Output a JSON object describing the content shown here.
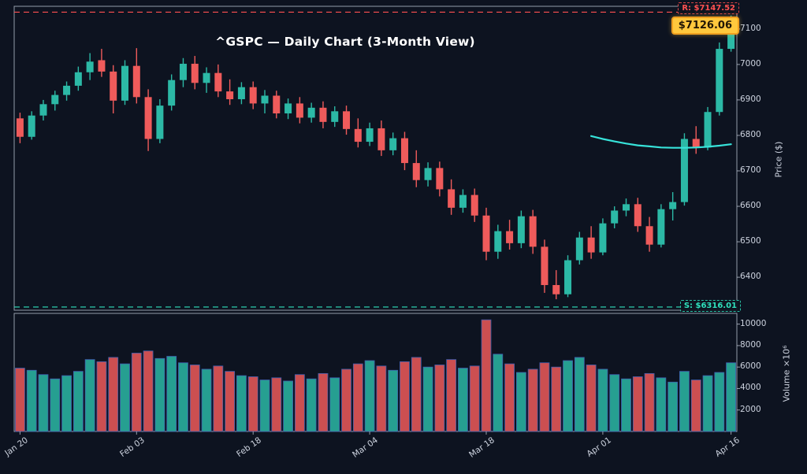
{
  "chart_data": {
    "type": "candlestick",
    "symbol": "^GSPC",
    "title": "^GSPC — Daily Chart (3-Month View)",
    "ylabel_price": "Price ($)",
    "ylabel_volume": "Volume ×10⁶",
    "ylim_price": [
      6307,
      7164
    ],
    "ylim_volume": [
      0,
      11000
    ],
    "price_ticks": [
      6400,
      6500,
      6600,
      6700,
      6800,
      6900,
      7000,
      7100
    ],
    "volume_ticks": [
      2000,
      4000,
      6000,
      8000,
      10000
    ],
    "date_tick_indices": [
      0,
      10,
      20,
      30,
      40,
      50,
      61
    ],
    "date_tick_labels": [
      "Jan 20",
      "Feb 03",
      "Feb 18",
      "Mar 04",
      "Mar 18",
      "Apr 01",
      "Apr 16"
    ],
    "dates": [
      "Jan 20",
      "Jan 21",
      "Jan 22",
      "Jan 23",
      "Jan 24",
      "Jan 27",
      "Jan 28",
      "Jan 29",
      "Jan 30",
      "Jan 31",
      "Feb 03",
      "Feb 04",
      "Feb 05",
      "Feb 06",
      "Feb 07",
      "Feb 10",
      "Feb 11",
      "Feb 12",
      "Feb 13",
      "Feb 14",
      "Feb 18",
      "Feb 19",
      "Feb 20",
      "Feb 21",
      "Feb 24",
      "Feb 25",
      "Feb 26",
      "Feb 27",
      "Feb 28",
      "Mar 03",
      "Mar 04",
      "Mar 05",
      "Mar 06",
      "Mar 07",
      "Mar 10",
      "Mar 11",
      "Mar 12",
      "Mar 13",
      "Mar 14",
      "Mar 17",
      "Mar 18",
      "Mar 19",
      "Mar 20",
      "Mar 21",
      "Mar 24",
      "Mar 25",
      "Mar 26",
      "Mar 27",
      "Mar 28",
      "Mar 31",
      "Apr 01",
      "Apr 02",
      "Apr 03",
      "Apr 04",
      "Apr 07",
      "Apr 08",
      "Apr 09",
      "Apr 10",
      "Apr 11",
      "Apr 14",
      "Apr 15",
      "Apr 16"
    ],
    "ohlc": [
      [
        6848,
        6864,
        6778,
        6796
      ],
      [
        6796,
        6868,
        6788,
        6856
      ],
      [
        6856,
        6900,
        6842,
        6888
      ],
      [
        6888,
        6926,
        6870,
        6914
      ],
      [
        6914,
        6952,
        6898,
        6940
      ],
      [
        6940,
        6994,
        6926,
        6978
      ],
      [
        6978,
        7032,
        6956,
        7008
      ],
      [
        7012,
        7044,
        6965,
        6980
      ],
      [
        6980,
        6998,
        6862,
        6898
      ],
      [
        6898,
        7012,
        6886,
        6996
      ],
      [
        6996,
        7046,
        6890,
        6908
      ],
      [
        6908,
        6930,
        6756,
        6790
      ],
      [
        6790,
        6902,
        6778,
        6884
      ],
      [
        6884,
        6972,
        6870,
        6956
      ],
      [
        6956,
        7018,
        6936,
        7002
      ],
      [
        7002,
        7024,
        6930,
        6948
      ],
      [
        6948,
        6992,
        6920,
        6976
      ],
      [
        6976,
        7000,
        6908,
        6924
      ],
      [
        6924,
        6958,
        6886,
        6902
      ],
      [
        6902,
        6950,
        6888,
        6936
      ],
      [
        6936,
        6952,
        6874,
        6890
      ],
      [
        6890,
        6928,
        6862,
        6912
      ],
      [
        6912,
        6926,
        6848,
        6862
      ],
      [
        6862,
        6904,
        6846,
        6890
      ],
      [
        6890,
        6908,
        6834,
        6850
      ],
      [
        6850,
        6892,
        6836,
        6878
      ],
      [
        6878,
        6896,
        6820,
        6838
      ],
      [
        6838,
        6882,
        6824,
        6868
      ],
      [
        6868,
        6884,
        6802,
        6818
      ],
      [
        6818,
        6848,
        6766,
        6782
      ],
      [
        6782,
        6836,
        6770,
        6820
      ],
      [
        6820,
        6842,
        6742,
        6758
      ],
      [
        6758,
        6808,
        6744,
        6792
      ],
      [
        6792,
        6810,
        6702,
        6722
      ],
      [
        6722,
        6758,
        6654,
        6674
      ],
      [
        6674,
        6724,
        6656,
        6708
      ],
      [
        6708,
        6726,
        6628,
        6648
      ],
      [
        6648,
        6676,
        6576,
        6596
      ],
      [
        6596,
        6648,
        6582,
        6632
      ],
      [
        6632,
        6650,
        6556,
        6574
      ],
      [
        6574,
        6596,
        6448,
        6472
      ],
      [
        6472,
        6548,
        6452,
        6530
      ],
      [
        6530,
        6562,
        6478,
        6496
      ],
      [
        6496,
        6588,
        6482,
        6572
      ],
      [
        6572,
        6590,
        6466,
        6486
      ],
      [
        6486,
        6506,
        6356,
        6378
      ],
      [
        6378,
        6420,
        6338,
        6352
      ],
      [
        6352,
        6462,
        6344,
        6448
      ],
      [
        6448,
        6528,
        6436,
        6512
      ],
      [
        6512,
        6544,
        6452,
        6470
      ],
      [
        6470,
        6566,
        6462,
        6552
      ],
      [
        6552,
        6600,
        6538,
        6588
      ],
      [
        6588,
        6622,
        6572,
        6606
      ],
      [
        6606,
        6624,
        6528,
        6544
      ],
      [
        6544,
        6570,
        6472,
        6492
      ],
      [
        6492,
        6606,
        6484,
        6592
      ],
      [
        6592,
        6640,
        6560,
        6612
      ],
      [
        6612,
        6806,
        6602,
        6790
      ],
      [
        6790,
        6826,
        6748,
        6766
      ],
      [
        6766,
        6880,
        6758,
        6866
      ],
      [
        6866,
        7062,
        6856,
        7044
      ],
      [
        7044,
        7138,
        7036,
        7126.06
      ]
    ],
    "volume": [
      5900,
      5700,
      5300,
      4900,
      5200,
      5600,
      6700,
      6500,
      6900,
      6300,
      7300,
      7500,
      6800,
      7000,
      6400,
      6200,
      5800,
      6100,
      5600,
      5200,
      5100,
      4800,
      5000,
      4700,
      5300,
      4900,
      5400,
      5000,
      5800,
      6300,
      6600,
      6100,
      5700,
      6500,
      6900,
      6000,
      6200,
      6700,
      5900,
      6100,
      10400,
      7200,
      6300,
      5500,
      5800,
      6400,
      6000,
      6600,
      6900,
      6200,
      5800,
      5300,
      4900,
      5100,
      5400,
      5000,
      4600,
      5600,
      4800,
      5200,
      5500,
      6400
    ],
    "trend_line": {
      "start_index": 49,
      "values": [
        6798,
        6790,
        6783,
        6777,
        6772,
        6769,
        6766,
        6765,
        6765,
        6766,
        6768,
        6771,
        6775
      ]
    },
    "annotations": {
      "resistance": {
        "label": "R: $7147.52",
        "value": 7147.52
      },
      "support": {
        "label": "S: $6316.01",
        "value": 6316.01
      },
      "last_price": {
        "label": "$7126.06",
        "value": 7126.06
      }
    },
    "colors": {
      "background": "#0d1320",
      "up": "#2cb9a6",
      "down": "#ef5b5b",
      "spine": "#b7bfcd",
      "tick_text": "#cdd3df",
      "trend": "#37e3da",
      "resistance": "#ff5050",
      "support": "#2fe0bc",
      "volume_edge": "#3f5fb0",
      "badge_bg": "#ffc83d",
      "badge_border": "#ef9f1f",
      "badge_text": "#211604"
    }
  }
}
